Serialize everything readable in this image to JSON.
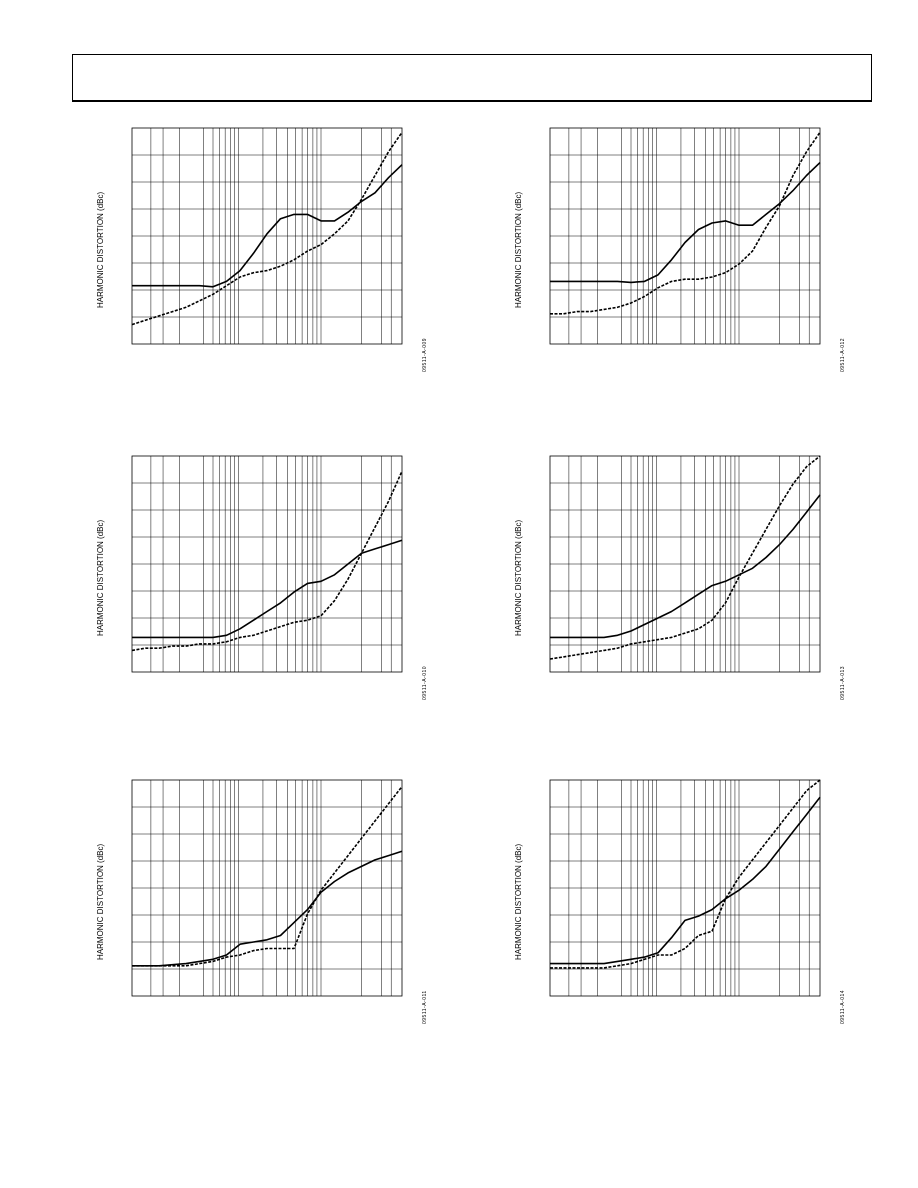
{
  "page": {
    "header_text": ""
  },
  "charts": [
    {
      "id": "09511-A-009",
      "ylabel": "HARMONIC DISTORTION (dBc)",
      "chart_data": {
        "type": "line",
        "xlabel": "",
        "ylabel": "HARMONIC DISTORTION (dBc)",
        "x": [
          0,
          0.05,
          0.1,
          0.15,
          0.2,
          0.25,
          0.3,
          0.35,
          0.4,
          0.45,
          0.5,
          0.55,
          0.6,
          0.65,
          0.7,
          0.75,
          0.8,
          0.85,
          0.9,
          0.95,
          1.0
        ],
        "series": [
          {
            "style": "solid",
            "values": [
              0.73,
              0.73,
              0.73,
              0.73,
              0.73,
              0.73,
              0.735,
              0.71,
              0.66,
              0.58,
              0.49,
              0.42,
              0.4,
              0.4,
              0.43,
              0.43,
              0.39,
              0.34,
              0.3,
              0.23,
              0.17
            ]
          },
          {
            "style": "dashed",
            "values": [
              0.91,
              0.89,
              0.87,
              0.85,
              0.83,
              0.8,
              0.77,
              0.73,
              0.69,
              0.67,
              0.66,
              0.64,
              0.61,
              0.57,
              0.54,
              0.49,
              0.43,
              0.33,
              0.22,
              0.11,
              0.02
            ]
          }
        ]
      }
    },
    {
      "id": "09511-A-012",
      "ylabel": "HARMONIC DISTORTION (dBc)",
      "chart_data": {
        "type": "line",
        "xlabel": "",
        "ylabel": "HARMONIC DISTORTION (dBc)",
        "x": [
          0,
          0.05,
          0.1,
          0.15,
          0.2,
          0.25,
          0.3,
          0.35,
          0.4,
          0.45,
          0.5,
          0.55,
          0.6,
          0.65,
          0.7,
          0.75,
          0.8,
          0.85,
          0.9,
          0.95,
          1.0
        ],
        "series": [
          {
            "style": "solid",
            "values": [
              0.71,
              0.71,
              0.71,
              0.71,
              0.71,
              0.71,
              0.715,
              0.71,
              0.68,
              0.61,
              0.53,
              0.47,
              0.44,
              0.43,
              0.45,
              0.45,
              0.4,
              0.35,
              0.29,
              0.22,
              0.16
            ]
          },
          {
            "style": "dashed",
            "values": [
              0.86,
              0.86,
              0.85,
              0.85,
              0.84,
              0.83,
              0.81,
              0.78,
              0.74,
              0.71,
              0.7,
              0.7,
              0.69,
              0.67,
              0.63,
              0.57,
              0.46,
              0.36,
              0.22,
              0.11,
              0.02
            ]
          }
        ]
      }
    },
    {
      "id": "09511-A-010",
      "ylabel": "HARMONIC DISTORTION (dBc)",
      "chart_data": {
        "type": "line",
        "xlabel": "",
        "ylabel": "HARMONIC DISTORTION (dBc)",
        "x": [
          0,
          0.05,
          0.1,
          0.15,
          0.2,
          0.25,
          0.3,
          0.35,
          0.4,
          0.45,
          0.5,
          0.55,
          0.6,
          0.65,
          0.7,
          0.75,
          0.8,
          0.85,
          0.9,
          0.95,
          1.0
        ],
        "series": [
          {
            "style": "solid",
            "values": [
              0.84,
              0.84,
              0.84,
              0.84,
              0.84,
              0.84,
              0.84,
              0.83,
              0.8,
              0.76,
              0.72,
              0.68,
              0.63,
              0.59,
              0.58,
              0.55,
              0.5,
              0.45,
              0.43,
              0.41,
              0.39
            ]
          },
          {
            "style": "dashed",
            "values": [
              0.9,
              0.89,
              0.89,
              0.88,
              0.88,
              0.87,
              0.87,
              0.86,
              0.84,
              0.83,
              0.81,
              0.79,
              0.77,
              0.76,
              0.74,
              0.67,
              0.57,
              0.45,
              0.33,
              0.21,
              0.07
            ]
          }
        ]
      }
    },
    {
      "id": "09511-A-013",
      "ylabel": "HARMONIC DISTORTION (dBc)",
      "chart_data": {
        "type": "line",
        "xlabel": "",
        "ylabel": "HARMONIC DISTORTION (dBc)",
        "x": [
          0,
          0.05,
          0.1,
          0.15,
          0.2,
          0.25,
          0.3,
          0.35,
          0.4,
          0.45,
          0.5,
          0.55,
          0.6,
          0.65,
          0.7,
          0.75,
          0.8,
          0.85,
          0.9,
          0.95,
          1.0
        ],
        "series": [
          {
            "style": "solid",
            "values": [
              0.84,
              0.84,
              0.84,
              0.84,
              0.84,
              0.83,
              0.81,
              0.78,
              0.75,
              0.72,
              0.68,
              0.64,
              0.6,
              0.58,
              0.55,
              0.52,
              0.47,
              0.41,
              0.34,
              0.26,
              0.18
            ]
          },
          {
            "style": "dashed",
            "values": [
              0.94,
              0.93,
              0.92,
              0.91,
              0.9,
              0.89,
              0.87,
              0.86,
              0.85,
              0.84,
              0.82,
              0.8,
              0.76,
              0.68,
              0.56,
              0.45,
              0.34,
              0.23,
              0.13,
              0.05,
              0.0
            ]
          }
        ]
      }
    },
    {
      "id": "09511-A-011",
      "ylabel": "HARMONIC DISTORTION (dBc)",
      "chart_data": {
        "type": "line",
        "xlabel": "",
        "ylabel": "HARMONIC DISTORTION (dBc)",
        "x": [
          0,
          0.05,
          0.1,
          0.15,
          0.2,
          0.25,
          0.3,
          0.35,
          0.4,
          0.45,
          0.5,
          0.55,
          0.6,
          0.65,
          0.7,
          0.75,
          0.8,
          0.85,
          0.9,
          0.95,
          1.0
        ],
        "series": [
          {
            "style": "solid",
            "values": [
              0.86,
              0.86,
              0.86,
              0.855,
              0.85,
              0.84,
              0.83,
              0.81,
              0.76,
              0.75,
              0.74,
              0.72,
              0.66,
              0.6,
              0.52,
              0.47,
              0.43,
              0.4,
              0.37,
              0.35,
              0.33
            ]
          },
          {
            "style": "dashed",
            "values": [
              0.86,
              0.86,
              0.86,
              0.86,
              0.86,
              0.85,
              0.84,
              0.82,
              0.81,
              0.79,
              0.78,
              0.78,
              0.78,
              0.62,
              0.51,
              0.43,
              0.35,
              0.27,
              0.19,
              0.11,
              0.03
            ]
          }
        ]
      }
    },
    {
      "id": "09511-A-014",
      "ylabel": "HARMONIC DISTORTION (dBc)",
      "chart_data": {
        "type": "line",
        "xlabel": "",
        "ylabel": "HARMONIC DISTORTION (dBc)",
        "x": [
          0,
          0.05,
          0.1,
          0.15,
          0.2,
          0.25,
          0.3,
          0.35,
          0.4,
          0.45,
          0.5,
          0.55,
          0.6,
          0.65,
          0.7,
          0.75,
          0.8,
          0.85,
          0.9,
          0.95,
          1.0
        ],
        "series": [
          {
            "style": "solid",
            "values": [
              0.85,
              0.85,
              0.85,
              0.85,
              0.85,
              0.84,
              0.83,
              0.82,
              0.8,
              0.73,
              0.65,
              0.63,
              0.6,
              0.55,
              0.51,
              0.46,
              0.4,
              0.32,
              0.24,
              0.16,
              0.08
            ]
          },
          {
            "style": "dashed",
            "values": [
              0.87,
              0.87,
              0.87,
              0.87,
              0.87,
              0.86,
              0.85,
              0.83,
              0.81,
              0.81,
              0.78,
              0.72,
              0.7,
              0.55,
              0.45,
              0.37,
              0.29,
              0.21,
              0.13,
              0.05,
              0.0
            ]
          }
        ]
      }
    }
  ]
}
